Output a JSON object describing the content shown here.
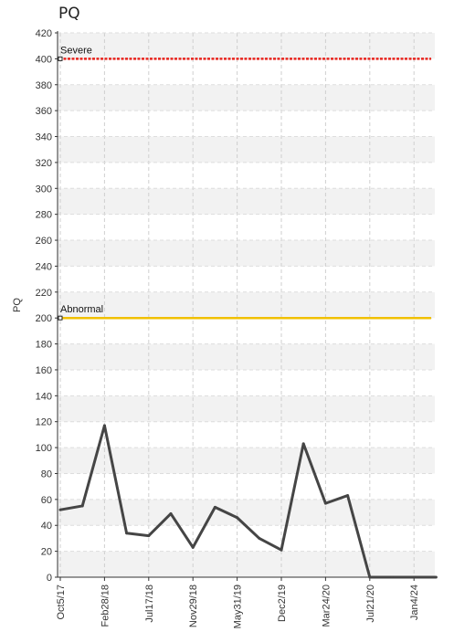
{
  "chart_title": "PQ",
  "chart_data": {
    "type": "line",
    "title": "PQ",
    "ylabel": "PQ",
    "xlabel": "",
    "ylim": [
      0,
      420
    ],
    "y_ticks": [
      0,
      20,
      40,
      60,
      80,
      100,
      120,
      140,
      160,
      180,
      200,
      220,
      240,
      260,
      280,
      300,
      320,
      340,
      360,
      380,
      400,
      420
    ],
    "x_tick_labels": [
      "Oct5/17",
      "Feb28/18",
      "Jul17/18",
      "Nov29/18",
      "May31/19",
      "Dec2/19",
      "Mar24/20",
      "Jul21/20",
      "Jan4/24"
    ],
    "series": [
      {
        "color": "#454545",
        "values": [
          52,
          55,
          117,
          34,
          32,
          49,
          23,
          54,
          46,
          30,
          21,
          103,
          57,
          63,
          0,
          0,
          0,
          0
        ]
      }
    ],
    "thresholds": [
      {
        "label": "Severe",
        "value": 400,
        "color": "#e8251f"
      },
      {
        "label": "Abnormal",
        "value": 200,
        "color": "#f0c000"
      }
    ],
    "grid": true,
    "band_colors": [
      "#f2f2f2",
      "#ffffff"
    ]
  }
}
